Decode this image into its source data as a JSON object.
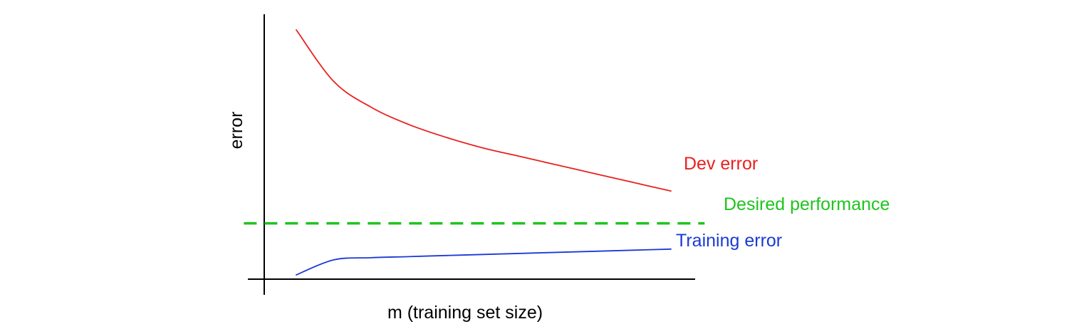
{
  "chart_data": {
    "type": "line",
    "xlabel": "m (training set size)",
    "ylabel": "error",
    "grid": false,
    "series": [
      {
        "name": "Dev error",
        "color": "#e8211f",
        "x": [
          0.0,
          0.1,
          0.2,
          0.3,
          0.4,
          0.5,
          0.6,
          0.7,
          0.8,
          0.9,
          1.0
        ],
        "values": [
          1.0,
          0.76,
          0.64,
          0.56,
          0.5,
          0.45,
          0.41,
          0.37,
          0.33,
          0.29,
          0.25
        ]
      },
      {
        "name": "Desired performance",
        "color": "#1ec41e",
        "style": "dashed",
        "x": [
          -0.14,
          1.09
        ],
        "values": [
          0.1,
          0.1
        ]
      },
      {
        "name": "Training error",
        "color": "#1a3ad6",
        "x": [
          0.0,
          0.1,
          0.2,
          0.3,
          0.4,
          0.5,
          0.6,
          0.7,
          0.8,
          0.9,
          1.0
        ],
        "values": [
          -0.14,
          -0.07,
          -0.06,
          -0.055,
          -0.05,
          -0.045,
          -0.04,
          -0.035,
          -0.03,
          -0.025,
          -0.02
        ]
      }
    ]
  }
}
